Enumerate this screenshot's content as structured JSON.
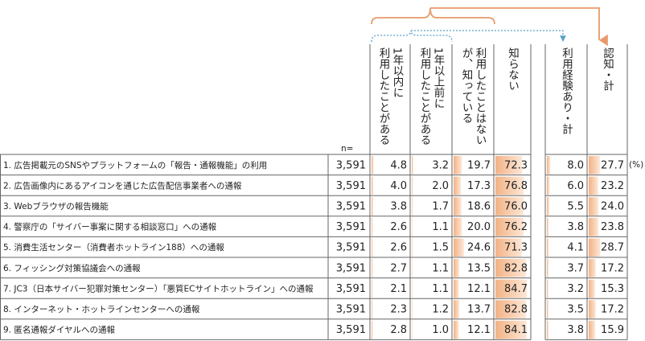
{
  "table": {
    "n_label": "n=",
    "unit": "(%)",
    "columns": [
      [
        "1年以内に",
        "利用したことがある"
      ],
      [
        "1年以上前に",
        "利用したことがある"
      ],
      [
        "利用したことはない",
        "が、知っている"
      ],
      [
        "知らない"
      ],
      [
        "利用経験あり・計"
      ],
      [
        "認知・計"
      ]
    ],
    "rows": [
      {
        "label": "1. 広告掲載元のSNSやプラットフォームの「報告・通報機能」の利用",
        "n": "3,591",
        "values": [
          "4.8",
          "3.2",
          "19.7",
          "72.3",
          "8.0",
          "27.7"
        ]
      },
      {
        "label": "2. 広告画像内にあるアイコンを通じた広告配信事業者への通報",
        "n": "3,591",
        "values": [
          "4.0",
          "2.0",
          "17.3",
          "76.8",
          "6.0",
          "23.2"
        ]
      },
      {
        "label": "3. Webブラウザの報告機能",
        "n": "3,591",
        "values": [
          "3.8",
          "1.7",
          "18.6",
          "76.0",
          "5.5",
          "24.0"
        ]
      },
      {
        "label": "4. 警察庁の「サイバー事案に関する相談窓口」への通報",
        "n": "3,591",
        "values": [
          "2.6",
          "1.1",
          "20.0",
          "76.2",
          "3.8",
          "23.8"
        ]
      },
      {
        "label": "5. 消費生活センター（消費者ホットライン188）への通報",
        "n": "3,591",
        "values": [
          "2.6",
          "1.5",
          "24.6",
          "71.3",
          "4.1",
          "28.7"
        ]
      },
      {
        "label": "6. フィッシング対策協議会への通報",
        "n": "3,591",
        "values": [
          "2.7",
          "1.1",
          "13.5",
          "82.8",
          "3.7",
          "17.2"
        ]
      },
      {
        "label": "7. JC3（日本サイバー犯罪対策センター）「悪質ECサイトホットライン」への通報",
        "n": "3,591",
        "values": [
          "2.1",
          "1.1",
          "12.1",
          "84.7",
          "3.2",
          "15.3"
        ]
      },
      {
        "label": "8. インターネット・ホットラインセンターへの通報",
        "n": "3,591",
        "values": [
          "2.3",
          "1.2",
          "13.7",
          "82.8",
          "3.5",
          "17.2"
        ]
      },
      {
        "label": "9. 匿名通報ダイヤルへの通報",
        "n": "3,591",
        "values": [
          "2.8",
          "1.0",
          "12.1",
          "84.1",
          "3.8",
          "15.9"
        ]
      }
    ]
  }
}
